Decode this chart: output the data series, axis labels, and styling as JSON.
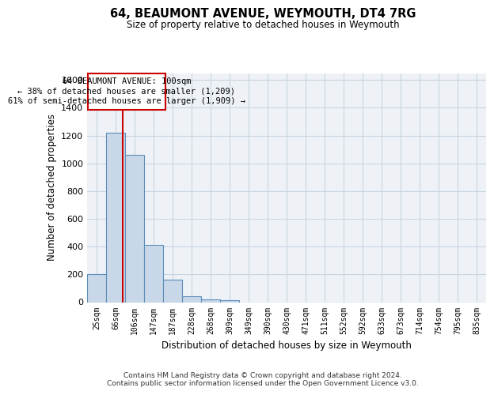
{
  "title": "64, BEAUMONT AVENUE, WEYMOUTH, DT4 7RG",
  "subtitle": "Size of property relative to detached houses in Weymouth",
  "xlabel": "Distribution of detached houses by size in Weymouth",
  "ylabel": "Number of detached properties",
  "categories": [
    "25sqm",
    "66sqm",
    "106sqm",
    "147sqm",
    "187sqm",
    "228sqm",
    "268sqm",
    "309sqm",
    "349sqm",
    "390sqm",
    "430sqm",
    "471sqm",
    "511sqm",
    "552sqm",
    "592sqm",
    "633sqm",
    "673sqm",
    "714sqm",
    "754sqm",
    "795sqm",
    "835sqm"
  ],
  "bar_heights": [
    200,
    1220,
    1060,
    410,
    165,
    40,
    20,
    15,
    0,
    0,
    0,
    0,
    0,
    0,
    0,
    0,
    0,
    0,
    0,
    0,
    0
  ],
  "bar_color": "#c8d8e8",
  "bar_edge_color": "#5b8db8",
  "ylim": [
    0,
    1650
  ],
  "yticks": [
    0,
    200,
    400,
    600,
    800,
    1000,
    1200,
    1400,
    1600
  ],
  "annotation_text_line1": "64 BEAUMONT AVENUE: 100sqm",
  "annotation_text_line2": "← 38% of detached houses are smaller (1,209)",
  "annotation_text_line3": "61% of semi-detached houses are larger (1,909) →",
  "annotation_box_color": "#cc0000",
  "grid_color": "#c8d4e0",
  "footer_line1": "Contains HM Land Registry data © Crown copyright and database right 2024.",
  "footer_line2": "Contains public sector information licensed under the Open Government Licence v3.0.",
  "background_color": "#eef2f7"
}
